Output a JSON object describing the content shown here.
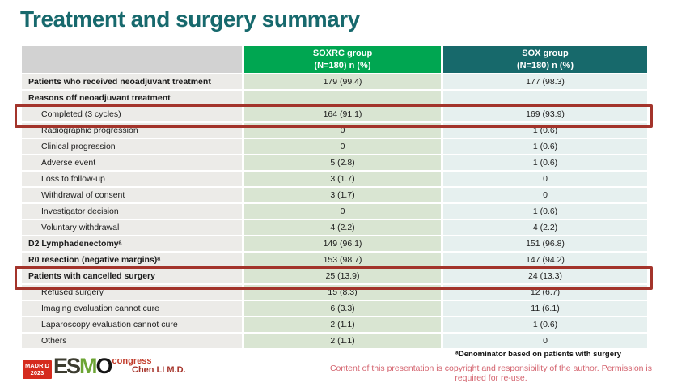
{
  "title": "Treatment and surgery summary",
  "table": {
    "columns": {
      "soxrc": {
        "line1": "SOXRC group",
        "line2": "(N=180)  n (%)"
      },
      "sox": {
        "line1": "SOX group",
        "line2": "(N=180)  n (%)"
      }
    },
    "rows": [
      {
        "label": "Patients who received neoadjuvant treatment",
        "soxrc": "179 (99.4)",
        "sox": "177 (98.3)",
        "bold": true,
        "indent": false,
        "highlight": false
      },
      {
        "label": "Reasons off neoadjuvant treatment",
        "soxrc": "",
        "sox": "",
        "bold": true,
        "indent": false,
        "highlight": false
      },
      {
        "label": "Completed (3 cycles)",
        "soxrc": "164 (91.1)",
        "sox": "169 (93.9)",
        "bold": false,
        "indent": true,
        "highlight": true
      },
      {
        "label": "Radiographic progression",
        "soxrc": "0",
        "sox": "1 (0.6)",
        "bold": false,
        "indent": true,
        "highlight": false
      },
      {
        "label": "Clinical progression",
        "soxrc": "0",
        "sox": "1 (0.6)",
        "bold": false,
        "indent": true,
        "highlight": false
      },
      {
        "label": "Adverse event",
        "soxrc": "5 (2.8)",
        "sox": "1 (0.6)",
        "bold": false,
        "indent": true,
        "highlight": false
      },
      {
        "label": "Loss to follow-up",
        "soxrc": "3 (1.7)",
        "sox": "0",
        "bold": false,
        "indent": true,
        "highlight": false
      },
      {
        "label": "Withdrawal of consent",
        "soxrc": "3 (1.7)",
        "sox": "0",
        "bold": false,
        "indent": true,
        "highlight": false
      },
      {
        "label": "Investigator decision",
        "soxrc": "0",
        "sox": "1 (0.6)",
        "bold": false,
        "indent": true,
        "highlight": false
      },
      {
        "label": "Voluntary withdrawal",
        "soxrc": "4 (2.2)",
        "sox": "4 (2.2)",
        "bold": false,
        "indent": true,
        "highlight": false
      },
      {
        "label": "D2 Lymphadenectomyᵃ",
        "soxrc": "149 (96.1)",
        "sox": "151 (96.8)",
        "bold": true,
        "indent": false,
        "highlight": false
      },
      {
        "label": "R0 resection (negative margins)ᵃ",
        "soxrc": "153 (98.7)",
        "sox": "147 (94.2)",
        "bold": true,
        "indent": false,
        "highlight": false
      },
      {
        "label": "Patients with cancelled surgery",
        "soxrc": "25 (13.9)",
        "sox": "24 (13.3)",
        "bold": true,
        "indent": false,
        "highlight": true
      },
      {
        "label": "Refused surgery",
        "soxrc": "15 (8.3)",
        "sox": "12 (6.7)",
        "bold": false,
        "indent": true,
        "highlight": false
      },
      {
        "label": "Imaging evaluation cannot cure",
        "soxrc": "6 (3.3)",
        "sox": "11 (6.1)",
        "bold": false,
        "indent": true,
        "highlight": false
      },
      {
        "label": "Laparoscopy evaluation cannot cure",
        "soxrc": "2 (1.1)",
        "sox": "1 (0.6)",
        "bold": false,
        "indent": true,
        "highlight": false
      },
      {
        "label": "Others",
        "soxrc": "2 (1.1)",
        "sox": "0",
        "bold": false,
        "indent": true,
        "highlight": false
      }
    ]
  },
  "footer": {
    "footnote": "ᵃDenominator based on patients with surgery",
    "copyright": "Content of this presentation is copyright and responsibility of the author.  Permission is required for re-use.",
    "author": "Chen LI M.D.",
    "logo": {
      "badge_line1": "MADRID",
      "badge_line2": "2023",
      "letter_e": "E",
      "letter_s": "S",
      "letter_m": "M",
      "letter_o": "O",
      "congress": "congress"
    }
  },
  "colors": {
    "title": "#17696D",
    "header_soxrc": "#00A651",
    "header_sox": "#17696B",
    "header_label_block": "#D2D2D2",
    "cell_label": "#ECEBE8",
    "cell_soxrc": "#D9E5D2",
    "cell_sox": "#E6F0EF",
    "highlight_border": "#A3342B",
    "author_text": "#A6342B",
    "copyright_text": "#D4646F"
  }
}
